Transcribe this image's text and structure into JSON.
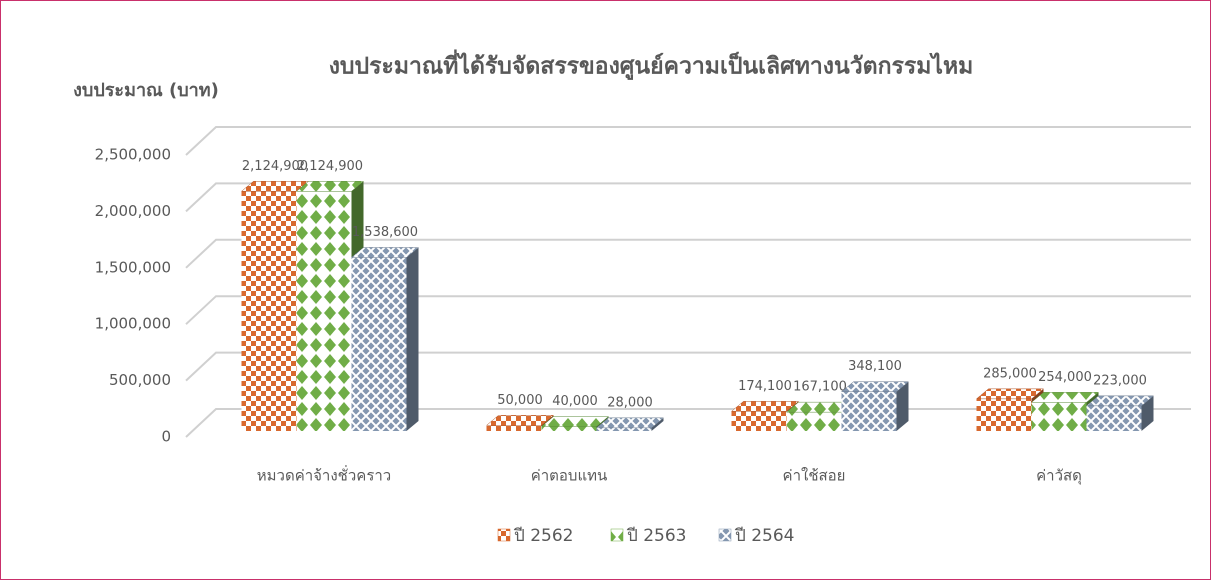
{
  "chart_data": {
    "type": "bar3d",
    "title": "งบประมาณที่ได้รับจัดสรรของศูนย์ความเป็นเลิศทางนวัตกรรมไหม",
    "y_label": "งบประมาณ (บาท)",
    "categories": [
      "หมวดค่าจ้างชั่วคราว",
      "ค่าตอบแทน",
      "ค่าใช้สอย",
      "ค่าวัสดุ"
    ],
    "series": [
      {
        "name": "ปี 2562",
        "color": "#d8692f",
        "values": [
          2124900,
          50000,
          174100,
          285000
        ],
        "value_labels": [
          "2,124,900",
          "50,000",
          "174,100",
          "285,000"
        ]
      },
      {
        "name": "ปี 2563",
        "color": "#70ad47",
        "values": [
          2124900,
          40000,
          167100,
          254000
        ],
        "value_labels": [
          "2,124,900",
          "40,000",
          "167,100",
          "254,000"
        ]
      },
      {
        "name": "ปี 2564",
        "color": "#8497b0",
        "values": [
          1538600,
          28000,
          348100,
          223000
        ],
        "value_labels": [
          "1,538,600",
          "28,000",
          "348,100",
          "223,000"
        ]
      }
    ],
    "ylim": [
      0,
      2500000
    ],
    "yticks": [
      0,
      {
        "value": 500000,
        "label": "500,000"
      },
      {
        "value": 1000000,
        "label": "1,000,000"
      },
      {
        "value": 1500000,
        "label": "1,500,000"
      },
      {
        "value": 2000000,
        "label": "2,000,000"
      },
      {
        "value": 2500000,
        "label": "2,500,000"
      }
    ],
    "grid": true,
    "legend": "bottom"
  }
}
